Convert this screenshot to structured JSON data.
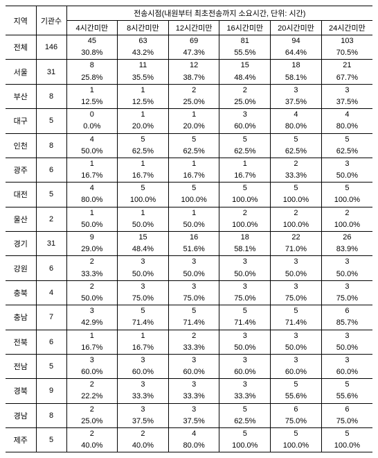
{
  "headers": {
    "region": "지역",
    "count": "기관수",
    "group": "전송시점(내원부터 최초전송까지 소요시간, 단위: 시간)",
    "cols": [
      "4시간미만",
      "8시간미만",
      "12시간미만",
      "16시간미만",
      "20시간미만",
      "24시간미만"
    ]
  },
  "rows": [
    {
      "region": "전체",
      "count": "146",
      "vals": [
        "45",
        "63",
        "69",
        "81",
        "94",
        "103"
      ],
      "pcts": [
        "30.8%",
        "43.2%",
        "47.3%",
        "55.5%",
        "64.4%",
        "70.5%"
      ]
    },
    {
      "region": "서울",
      "count": "31",
      "vals": [
        "8",
        "11",
        "12",
        "15",
        "18",
        "21"
      ],
      "pcts": [
        "25.8%",
        "35.5%",
        "38.7%",
        "48.4%",
        "58.1%",
        "67.7%"
      ]
    },
    {
      "region": "부산",
      "count": "8",
      "vals": [
        "1",
        "1",
        "2",
        "2",
        "3",
        "3"
      ],
      "pcts": [
        "12.5%",
        "12.5%",
        "25.0%",
        "25.0%",
        "37.5%",
        "37.5%"
      ]
    },
    {
      "region": "대구",
      "count": "5",
      "vals": [
        "0",
        "1",
        "1",
        "3",
        "4",
        "4"
      ],
      "pcts": [
        "0.0%",
        "20.0%",
        "20.0%",
        "60.0%",
        "80.0%",
        "80.0%"
      ]
    },
    {
      "region": "인천",
      "count": "8",
      "vals": [
        "4",
        "5",
        "5",
        "5",
        "5",
        "5"
      ],
      "pcts": [
        "50.0%",
        "62.5%",
        "62.5%",
        "62.5%",
        "62.5%",
        "62.5%"
      ]
    },
    {
      "region": "광주",
      "count": "6",
      "vals": [
        "1",
        "1",
        "1",
        "1",
        "2",
        "3"
      ],
      "pcts": [
        "16.7%",
        "16.7%",
        "16.7%",
        "16.7%",
        "33.3%",
        "50.0%"
      ]
    },
    {
      "region": "대전",
      "count": "5",
      "vals": [
        "4",
        "5",
        "5",
        "5",
        "5",
        "5"
      ],
      "pcts": [
        "80.0%",
        "100.0%",
        "100.0%",
        "100.0%",
        "100.0%",
        "100.0%"
      ]
    },
    {
      "region": "울산",
      "count": "2",
      "vals": [
        "1",
        "1",
        "1",
        "2",
        "2",
        "2"
      ],
      "pcts": [
        "50.0%",
        "50.0%",
        "50.0%",
        "100.0%",
        "100.0%",
        "100.0%"
      ]
    },
    {
      "region": "경기",
      "count": "31",
      "vals": [
        "9",
        "15",
        "16",
        "18",
        "22",
        "26"
      ],
      "pcts": [
        "29.0%",
        "48.4%",
        "51.6%",
        "58.1%",
        "71.0%",
        "83.9%"
      ]
    },
    {
      "region": "강원",
      "count": "6",
      "vals": [
        "2",
        "3",
        "3",
        "3",
        "3",
        "3"
      ],
      "pcts": [
        "33.3%",
        "50.0%",
        "50.0%",
        "50.0%",
        "50.0%",
        "50.0%"
      ]
    },
    {
      "region": "충북",
      "count": "4",
      "vals": [
        "2",
        "3",
        "3",
        "3",
        "3",
        "3"
      ],
      "pcts": [
        "50.0%",
        "75.0%",
        "75.0%",
        "75.0%",
        "75.0%",
        "75.0%"
      ]
    },
    {
      "region": "충남",
      "count": "7",
      "vals": [
        "3",
        "5",
        "5",
        "5",
        "5",
        "6"
      ],
      "pcts": [
        "42.9%",
        "71.4%",
        "71.4%",
        "71.4%",
        "71.4%",
        "85.7%"
      ]
    },
    {
      "region": "전북",
      "count": "6",
      "vals": [
        "1",
        "1",
        "2",
        "3",
        "3",
        "3"
      ],
      "pcts": [
        "16.7%",
        "16.7%",
        "33.3%",
        "50.0%",
        "50.0%",
        "50.0%"
      ]
    },
    {
      "region": "전남",
      "count": "5",
      "vals": [
        "3",
        "3",
        "3",
        "3",
        "3",
        "3"
      ],
      "pcts": [
        "60.0%",
        "60.0%",
        "60.0%",
        "60.0%",
        "60.0%",
        "60.0%"
      ]
    },
    {
      "region": "경북",
      "count": "9",
      "vals": [
        "2",
        "3",
        "3",
        "3",
        "5",
        "5"
      ],
      "pcts": [
        "22.2%",
        "33.3%",
        "33.3%",
        "33.3%",
        "55.6%",
        "55.6%"
      ]
    },
    {
      "region": "경남",
      "count": "8",
      "vals": [
        "2",
        "3",
        "3",
        "5",
        "6",
        "6"
      ],
      "pcts": [
        "25.0%",
        "37.5%",
        "37.5%",
        "62.5%",
        "75.0%",
        "75.0%"
      ]
    },
    {
      "region": "제주",
      "count": "5",
      "vals": [
        "2",
        "2",
        "4",
        "5",
        "5",
        "5"
      ],
      "pcts": [
        "40.0%",
        "40.0%",
        "80.0%",
        "100.0%",
        "100.0%",
        "100.0%"
      ]
    }
  ]
}
